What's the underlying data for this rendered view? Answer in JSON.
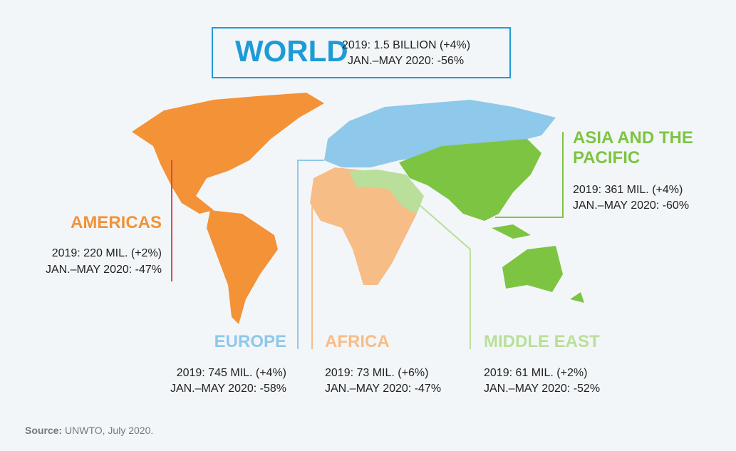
{
  "header": {
    "title": "WORLD",
    "lines": [
      "2019: 1.5 BILLION (+4%)",
      "JAN.–MAY 2020: -56%"
    ]
  },
  "regions": [
    {
      "title_lines": [
        "AMERICAS"
      ],
      "lines": [
        "2019: 220 MIL. (+2%)",
        "JAN.–MAY 2020: -47%"
      ]
    },
    {
      "title_lines": [
        "ASIA AND THE",
        "PACIFIC"
      ],
      "lines": [
        "2019: 361 MIL. (+4%)",
        "JAN.–MAY 2020: -60%"
      ]
    },
    {
      "title_lines": [
        "EUROPE"
      ],
      "lines": [
        "2019: 745 MIL. (+4%)",
        "JAN.–MAY 2020: -58%"
      ]
    },
    {
      "title_lines": [
        "AFRICA"
      ],
      "lines": [
        "2019: 73 MIL. (+6%)",
        "JAN.–MAY 2020: -47%"
      ]
    },
    {
      "title_lines": [
        "MIDDLE EAST"
      ],
      "lines": [
        "2019: 61 MIL. (+2%)",
        "JAN.–MAY 2020: -52%"
      ]
    }
  ],
  "source": {
    "label": "Source:",
    "text": "UNWTO, July 2020."
  }
}
